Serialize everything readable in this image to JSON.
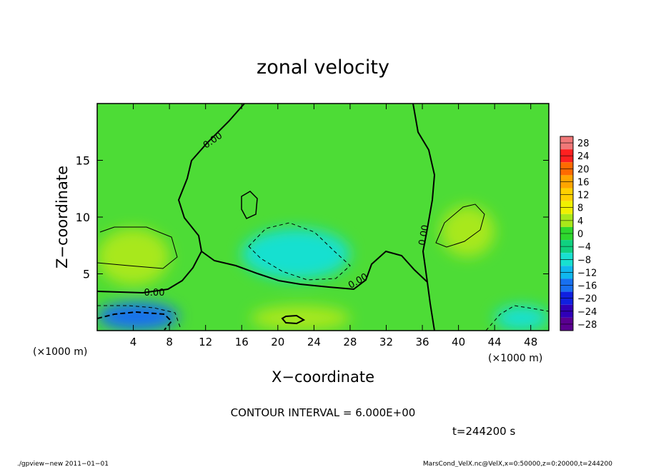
{
  "chart_data": {
    "type": "heatmap",
    "title": "zonal velocity",
    "xlabel": "X−coordinate",
    "ylabel": "Z−coordinate",
    "x_unit_left": "(×1000 m)",
    "x_unit_right": "(×1000 m)",
    "xlim": [
      0,
      50
    ],
    "ylim": [
      0,
      20
    ],
    "x_ticks": [
      4,
      8,
      12,
      16,
      20,
      24,
      28,
      32,
      36,
      40,
      44,
      48
    ],
    "y_ticks": [
      5,
      10,
      15
    ],
    "contour_interval_text": "CONTOUR INTERVAL = 6.000E+00",
    "time_text": "t=244200 s",
    "contour_label": "0.00",
    "colorbar": {
      "levels": [
        28,
        24,
        20,
        16,
        12,
        8,
        4,
        0,
        -4,
        -8,
        -12,
        -16,
        -20,
        -24,
        -28
      ],
      "level_labels": [
        "28",
        "24",
        "20",
        "16",
        "12",
        "8",
        "4",
        "0",
        "−4",
        "−8",
        "−12",
        "−16",
        "−20",
        "−24",
        "−28"
      ],
      "colors": [
        "#f07878",
        "#ff2020",
        "#ff6a00",
        "#ffa500",
        "#ffd000",
        "#f0f000",
        "#a8e81a",
        "#2ed82e",
        "#10d080",
        "#18e0d0",
        "#10b8ee",
        "#1870f0",
        "#1020e0",
        "#3000b8",
        "#5a0090"
      ]
    },
    "regions": [
      {
        "x": [
          0,
          8
        ],
        "y": [
          4,
          9
        ],
        "value": 6
      },
      {
        "x": [
          38,
          44
        ],
        "y": [
          6.5,
          11
        ],
        "value": 6
      },
      {
        "x": [
          17,
          28
        ],
        "y": [
          0,
          2.2
        ],
        "value": 6
      },
      {
        "x": [
          16,
          28
        ],
        "y": [
          4.5,
          9
        ],
        "value": -7
      },
      {
        "x": [
          0,
          9
        ],
        "y": [
          0,
          2.5
        ],
        "value": -14
      },
      {
        "x": [
          44,
          50
        ],
        "y": [
          0,
          2.2
        ],
        "value": -8
      }
    ]
  },
  "footer": {
    "left": "./gpview−new   2011−01−01",
    "right": "MarsCond_VelX.nc@VelX,x=0:50000,z=0:20000,t=244200"
  }
}
